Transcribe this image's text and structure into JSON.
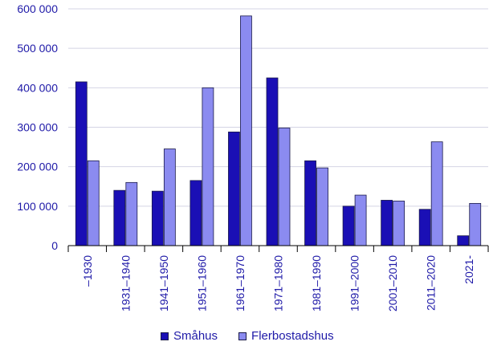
{
  "chart_data": {
    "type": "bar",
    "title": "",
    "xlabel": "",
    "ylabel": "",
    "ylim": [
      0,
      600000
    ],
    "y_ticks": [
      0,
      100000,
      200000,
      300000,
      400000,
      500000,
      600000
    ],
    "y_tick_labels": [
      "0",
      "100 000",
      "200 000",
      "300 000",
      "400 000",
      "500 000",
      "600 000"
    ],
    "grid": "horizontal",
    "legend_position": "bottom",
    "categories": [
      "–1930",
      "1931–1940",
      "1941–1950",
      "1951–1960",
      "1961–1970",
      "1971–1980",
      "1981–1990",
      "1991–2000",
      "2001–2010",
      "2011–2020",
      "2021-"
    ],
    "series": [
      {
        "name": "Småhus",
        "color": "#1a0fb5",
        "values": [
          415000,
          140000,
          138000,
          165000,
          288000,
          425000,
          215000,
          100000,
          115000,
          92000,
          25000
        ]
      },
      {
        "name": "Flerbostadshus",
        "color": "#8b8bf0",
        "values": [
          215000,
          160000,
          245000,
          400000,
          582000,
          298000,
          197000,
          128000,
          113000,
          263000,
          107000
        ]
      }
    ]
  }
}
